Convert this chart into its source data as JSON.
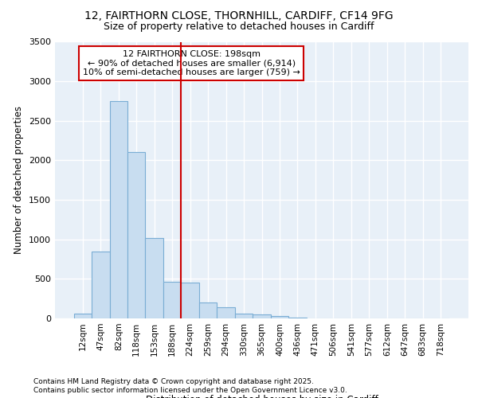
{
  "title_line1": "12, FAIRTHORN CLOSE, THORNHILL, CARDIFF, CF14 9FG",
  "title_line2": "Size of property relative to detached houses in Cardiff",
  "xlabel": "Distribution of detached houses by size in Cardiff",
  "ylabel": "Number of detached properties",
  "categories": [
    "12sqm",
    "47sqm",
    "82sqm",
    "118sqm",
    "153sqm",
    "188sqm",
    "224sqm",
    "259sqm",
    "294sqm",
    "330sqm",
    "365sqm",
    "400sqm",
    "436sqm",
    "471sqm",
    "506sqm",
    "541sqm",
    "577sqm",
    "612sqm",
    "647sqm",
    "683sqm",
    "718sqm"
  ],
  "values": [
    60,
    850,
    2750,
    2100,
    1020,
    460,
    450,
    200,
    145,
    60,
    50,
    30,
    10,
    5,
    0,
    0,
    0,
    0,
    0,
    0,
    0
  ],
  "bar_color": "#c8ddf0",
  "bar_edge_color": "#7aadd4",
  "vline_color": "#cc0000",
  "vline_pos": 5.5,
  "annotation_title": "12 FAIRTHORN CLOSE: 198sqm",
  "annotation_line1": "← 90% of detached houses are smaller (6,914)",
  "annotation_line2": "10% of semi-detached houses are larger (759) →",
  "annotation_box_edgecolor": "#cc0000",
  "ylim": [
    0,
    3500
  ],
  "yticks": [
    0,
    500,
    1000,
    1500,
    2000,
    2500,
    3000,
    3500
  ],
  "plot_bg_color": "#e8f0f8",
  "fig_bg_color": "#ffffff",
  "grid_color": "#ffffff",
  "footer_line1": "Contains HM Land Registry data © Crown copyright and database right 2025.",
  "footer_line2": "Contains public sector information licensed under the Open Government Licence v3.0."
}
